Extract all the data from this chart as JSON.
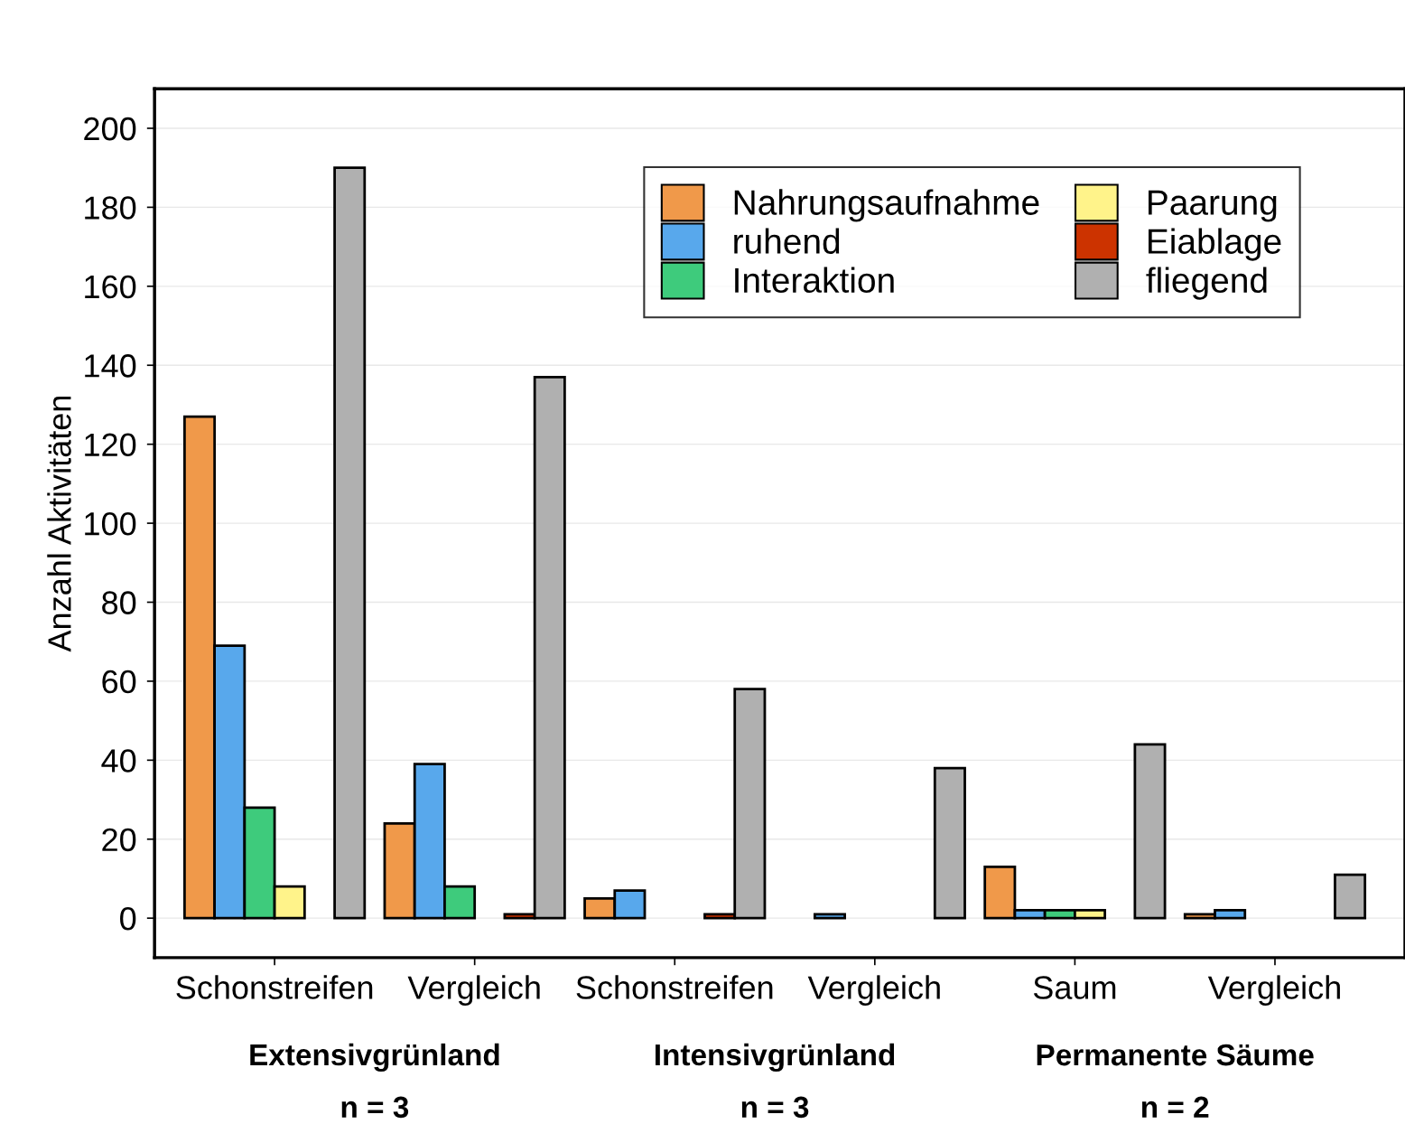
{
  "chart_data": {
    "type": "bar",
    "ylabel": "Anzahl Aktivitäten",
    "categories": [
      "Schonstreifen",
      "Vergleich",
      "Schonstreifen",
      "Vergleich",
      "Saum",
      "Vergleich"
    ],
    "series": [
      {
        "name": "Nahrungsaufnahme",
        "color": "#f0994a",
        "values": [
          127,
          24,
          5,
          0,
          13,
          1
        ]
      },
      {
        "name": "ruhend",
        "color": "#58a8ec",
        "values": [
          69,
          39,
          7,
          1,
          2,
          2
        ]
      },
      {
        "name": "Interaktion",
        "color": "#3ecb7c",
        "values": [
          28,
          8,
          0,
          0,
          2,
          0
        ]
      },
      {
        "name": "Paarung",
        "color": "#fff38a",
        "values": [
          8,
          0,
          0,
          0,
          2,
          0
        ]
      },
      {
        "name": "Eiablage",
        "color": "#cc3300",
        "values": [
          0,
          1,
          1,
          0,
          0,
          0
        ]
      },
      {
        "name": "fliegend",
        "color": "#b0b0b0",
        "values": [
          190,
          137,
          58,
          38,
          44,
          11
        ]
      }
    ],
    "ylim": [
      -10,
      210
    ],
    "yticks": [
      0,
      20,
      40,
      60,
      80,
      100,
      120,
      140,
      160,
      180,
      200
    ],
    "grid": "y",
    "legend": "top right",
    "annotations": [
      "Extensivgrünland",
      "n = 3",
      "Intensivgrünland",
      "n = 3",
      "Permanente Säume",
      "n = 2"
    ]
  }
}
